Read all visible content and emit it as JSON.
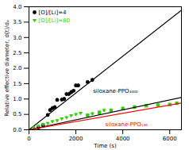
{
  "chart_data": {
    "type": "scatter",
    "xlabel": "Time (s)",
    "ylabel": "Relative effective diameter, d(t)/dₒ",
    "xlim": [
      0,
      6500
    ],
    "ylim": [
      0.0,
      4.0
    ],
    "xticks": [
      0,
      2000,
      4000,
      6000
    ],
    "yticks": [
      {
        "value": 0.0,
        "label": "0.0"
      },
      0.5,
      {
        "value": 1.0,
        "label": "1.0"
      },
      1.5,
      {
        "value": 2.0,
        "label": "2.0"
      },
      2.5,
      {
        "value": 3.0,
        "label": "3.0"
      },
      3.5,
      {
        "value": 4.0,
        "label": "4.0"
      }
    ],
    "grid": false,
    "legend": "upper left",
    "series": [
      {
        "name": "[O]/[Li]=4",
        "color": "#000000",
        "marker": "circle",
        "x": [
          400,
          600,
          800,
          900,
          1000,
          1100,
          1200,
          1400,
          1500,
          1600,
          1700,
          1800,
          1900,
          2000,
          2100,
          2500,
          2700
        ],
        "values": [
          0.07,
          0.15,
          0.48,
          0.64,
          0.7,
          0.73,
          0.97,
          0.98,
          1.0,
          1.16,
          1.16,
          1.22,
          1.27,
          1.44,
          1.44,
          1.55,
          1.62
        ],
        "errors": [
          0.04,
          0.04,
          0.05,
          0.06,
          0.06,
          0.06,
          0.05,
          0.06,
          0.06,
          0.06,
          0.06,
          0.06,
          0.05,
          0.05,
          0.05,
          0.04,
          0.04
        ]
      },
      {
        "type": "line",
        "color": "#000000",
        "x": [
          0,
          6500
        ],
        "values": [
          0.0,
          3.89
        ]
      },
      {
        "name": "[O]/[Li]=80",
        "color": "#33cc00",
        "marker": "triangle-down",
        "x": [
          200,
          400,
          600,
          800,
          1000,
          1200,
          1400,
          1600,
          1800,
          2000,
          2200,
          2500,
          2700,
          3000,
          3200
        ],
        "values": [
          0.07,
          0.12,
          0.17,
          0.21,
          0.27,
          0.3,
          0.36,
          0.4,
          0.46,
          0.5,
          0.54,
          0.47,
          0.52,
          0.58,
          0.63
        ],
        "errors": [
          0.04,
          0.04,
          0.04,
          0.03,
          0.03,
          0.03,
          0.03,
          0.03,
          0.03,
          0.03,
          0.03,
          0.05,
          0.05,
          0.05,
          0.06
        ]
      },
      {
        "color": "#33cc00",
        "marker": "square",
        "x": [
          2500,
          3000,
          3500,
          4000,
          4500,
          5000,
          5500,
          6000,
          6300
        ],
        "values": [
          0.47,
          0.55,
          0.63,
          0.69,
          0.74,
          0.78,
          0.8,
          0.82,
          0.86
        ],
        "errors": [
          0.05,
          0.05,
          0.06,
          0.06,
          0.05,
          0.05,
          0.05,
          0.05,
          0.05
        ]
      },
      {
        "type": "line",
        "color": "#000000",
        "x": [
          0,
          6500
        ],
        "values": [
          0.0,
          1.05
        ]
      },
      {
        "type": "line",
        "color": "#ff0000",
        "x": [
          0,
          6500
        ],
        "values": [
          0.0,
          0.87
        ]
      }
    ],
    "annotations": [
      {
        "text": "siloxane-PPO₄₀₀₀",
        "color": "#000000"
      },
      {
        "text": "siloxane-PPO₁₃₀",
        "color": "#ff0000"
      }
    ]
  }
}
